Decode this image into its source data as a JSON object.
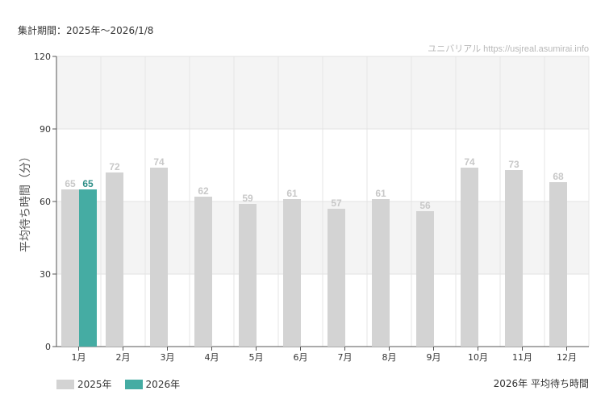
{
  "header": {
    "period": "集計期間：2025年～2026/1/8"
  },
  "footer": {
    "title": "2026年 平均待ち時間"
  },
  "chart_data": {
    "type": "bar",
    "watermark": "ユニバリアル  https://usjreal.asumirai.info",
    "ylabel": "平均待ち時間（分）",
    "ylim": [
      0,
      120
    ],
    "yticks": [
      0,
      30,
      60,
      90,
      120
    ],
    "categories": [
      "1月",
      "2月",
      "3月",
      "4月",
      "5月",
      "6月",
      "7月",
      "8月",
      "9月",
      "10月",
      "11月",
      "12月"
    ],
    "series": [
      {
        "name": "2025年",
        "color": "#d3d3d3",
        "label_color": "#c8c8c8",
        "values": [
          65,
          72,
          74,
          62,
          59,
          61,
          57,
          61,
          56,
          74,
          73,
          68
        ]
      },
      {
        "name": "2026年",
        "color": "#45aca3",
        "label_color": "#2f8f88",
        "values": [
          65,
          null,
          null,
          null,
          null,
          null,
          null,
          null,
          null,
          null,
          null,
          null
        ]
      }
    ],
    "grid": true,
    "legend_position": "bottom-left"
  }
}
